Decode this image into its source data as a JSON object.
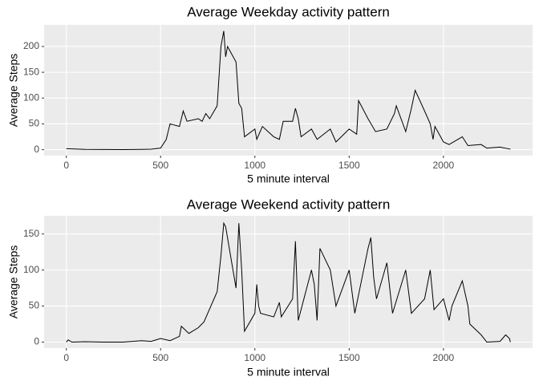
{
  "chart_data": [
    {
      "type": "line",
      "title": "Average Weekday activity pattern",
      "x_label": "5 minute interval",
      "y_label": "Average Steps",
      "color": "#000000",
      "grid": true,
      "x": [
        0,
        100,
        200,
        300,
        400,
        450,
        500,
        530,
        550,
        600,
        620,
        640,
        700,
        720,
        740,
        760,
        800,
        820,
        830,
        835,
        845,
        855,
        900,
        915,
        930,
        945,
        1000,
        1010,
        1040,
        1100,
        1130,
        1150,
        1200,
        1215,
        1230,
        1245,
        1300,
        1330,
        1400,
        1430,
        1500,
        1540,
        1550,
        1600,
        1640,
        1700,
        1740,
        1750,
        1800,
        1830,
        1850,
        1900,
        1930,
        1945,
        1955,
        2000,
        2030,
        2100,
        2130,
        2200,
        2230,
        2300,
        2340,
        2355
      ],
      "values": [
        2,
        0.5,
        0.3,
        0.2,
        0.5,
        1,
        3,
        20,
        50,
        45,
        75,
        55,
        60,
        55,
        70,
        60,
        85,
        200,
        220,
        230,
        180,
        200,
        170,
        90,
        80,
        25,
        40,
        20,
        45,
        25,
        20,
        55,
        55,
        80,
        60,
        25,
        40,
        20,
        40,
        15,
        40,
        30,
        95,
        60,
        35,
        40,
        70,
        85,
        35,
        80,
        115,
        75,
        50,
        20,
        45,
        15,
        10,
        25,
        8,
        10,
        3,
        5,
        2,
        1
      ],
      "xlim": [
        -117.75,
        2472.75
      ],
      "xticks": [
        0,
        500,
        1000,
        1500,
        2000
      ],
      "ylim": [
        -11.5,
        241.9
      ],
      "yticks": [
        0,
        50,
        100,
        150,
        200
      ]
    },
    {
      "type": "line",
      "title": "Average Weekend activity pattern",
      "x_label": "5 minute interval",
      "y_label": "Average Steps",
      "color": "#000000",
      "grid": true,
      "x": [
        0,
        10,
        30,
        100,
        200,
        300,
        400,
        450,
        500,
        550,
        600,
        610,
        650,
        700,
        730,
        800,
        820,
        835,
        845,
        900,
        915,
        930,
        945,
        1000,
        1010,
        1020,
        1030,
        1100,
        1130,
        1140,
        1200,
        1215,
        1230,
        1300,
        1315,
        1330,
        1345,
        1400,
        1430,
        1500,
        1530,
        1600,
        1615,
        1630,
        1645,
        1700,
        1730,
        1800,
        1830,
        1900,
        1930,
        1950,
        2000,
        2030,
        2045,
        2100,
        2130,
        2140,
        2200,
        2230,
        2300,
        2330,
        2350,
        2355
      ],
      "values": [
        0,
        3,
        0,
        0.5,
        0,
        0,
        2,
        1,
        5,
        2,
        8,
        22,
        12,
        20,
        28,
        70,
        120,
        165,
        160,
        75,
        165,
        100,
        15,
        40,
        80,
        50,
        40,
        35,
        55,
        35,
        60,
        140,
        30,
        100,
        80,
        30,
        130,
        100,
        50,
        100,
        40,
        130,
        145,
        90,
        60,
        110,
        40,
        100,
        40,
        60,
        100,
        45,
        60,
        30,
        50,
        85,
        50,
        25,
        10,
        0,
        1,
        10,
        5,
        0
      ],
      "xlim": [
        -117.75,
        2472.75
      ],
      "xticks": [
        0,
        500,
        1000,
        1500,
        2000
      ],
      "ylim": [
        -8.35,
        175.3
      ],
      "yticks": [
        0,
        50,
        100,
        150
      ]
    }
  ]
}
